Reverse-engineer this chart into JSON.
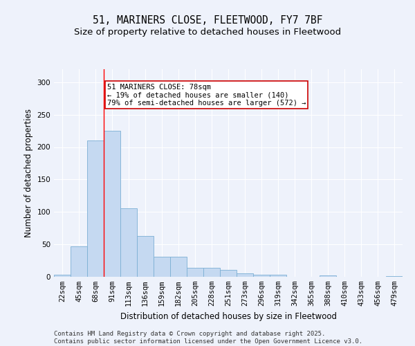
{
  "title_line1": "51, MARINERS CLOSE, FLEETWOOD, FY7 7BF",
  "title_line2": "Size of property relative to detached houses in Fleetwood",
  "xlabel": "Distribution of detached houses by size in Fleetwood",
  "ylabel": "Number of detached properties",
  "bar_values": [
    3,
    47,
    210,
    225,
    106,
    63,
    31,
    31,
    14,
    14,
    11,
    5,
    3,
    3,
    0,
    0,
    2,
    0,
    0,
    0,
    1
  ],
  "bin_labels": [
    "22sqm",
    "45sqm",
    "68sqm",
    "91sqm",
    "113sqm",
    "136sqm",
    "159sqm",
    "182sqm",
    "205sqm",
    "228sqm",
    "251sqm",
    "273sqm",
    "296sqm",
    "319sqm",
    "342sqm",
    "365sqm",
    "388sqm",
    "410sqm",
    "433sqm",
    "456sqm",
    "479sqm"
  ],
  "bar_color": "#c5d9f1",
  "bar_edge_color": "#7bafd4",
  "background_color": "#eef2fb",
  "grid_color": "#ffffff",
  "red_line_x": 2.5,
  "annotation_text": "51 MARINERS CLOSE: 78sqm\n← 19% of detached houses are smaller (140)\n79% of semi-detached houses are larger (572) →",
  "annotation_box_color": "#ffffff",
  "annotation_box_edge": "#cc0000",
  "ylim": [
    0,
    320
  ],
  "yticks": [
    0,
    50,
    100,
    150,
    200,
    250,
    300
  ],
  "footer_text": "Contains HM Land Registry data © Crown copyright and database right 2025.\nContains public sector information licensed under the Open Government Licence v3.0.",
  "title_fontsize": 10.5,
  "subtitle_fontsize": 9.5,
  "axis_label_fontsize": 8.5,
  "tick_fontsize": 7.5,
  "annotation_fontsize": 7.5,
  "footer_fontsize": 6.5
}
